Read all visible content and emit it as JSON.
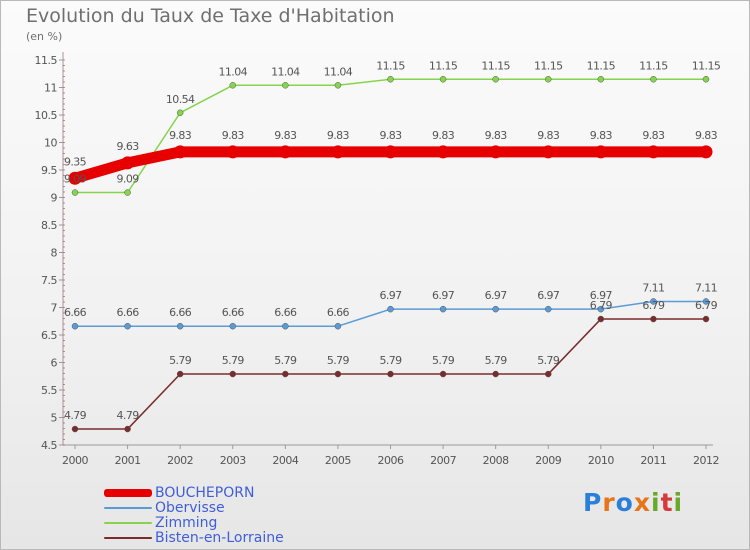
{
  "title": "Evolution du Taux de Taxe d'Habitation",
  "subtitle": "(en %)",
  "logo": {
    "letters": [
      "P",
      "r",
      "o",
      "x",
      "i",
      "t",
      "i"
    ],
    "colors": [
      "#2a7fd8",
      "#e8731a",
      "#2a7fd8",
      "#e8731a",
      "#6aa82a",
      "#d43a3a",
      "#6aa82a"
    ]
  },
  "chart_data": {
    "type": "line",
    "title": "Evolution du Taux de Taxe d'Habitation",
    "ylabel": "(en %)",
    "xlabel": "",
    "x": [
      "2000",
      "2001",
      "2002",
      "2003",
      "2004",
      "2005",
      "2006",
      "2007",
      "2008",
      "2009",
      "2010",
      "2011",
      "2012"
    ],
    "ylim": [
      4.5,
      11.5
    ],
    "yticks": [
      "4.5",
      "5",
      "5.5",
      "6",
      "6.5",
      "7",
      "7.5",
      "8",
      "8.5",
      "9",
      "9.5",
      "10",
      "10.5",
      "11",
      "11.5"
    ],
    "grid": false,
    "legend": "bottom-left",
    "series": [
      {
        "name": "BOUCHEPORN",
        "color": "#e60000",
        "values": [
          9.35,
          9.63,
          9.83,
          9.83,
          9.83,
          9.83,
          9.83,
          9.83,
          9.83,
          9.83,
          9.83,
          9.83,
          9.83
        ],
        "labels": [
          "9.35",
          "9.63",
          "9.83",
          "9.83",
          "9.83",
          "9.83",
          "9.83",
          "9.83",
          "9.83",
          "9.83",
          "9.83",
          "9.83",
          "9.83"
        ]
      },
      {
        "name": "Obervisse",
        "color": "#5b9bd5",
        "values": [
          6.66,
          6.66,
          6.66,
          6.66,
          6.66,
          6.66,
          6.97,
          6.97,
          6.97,
          6.97,
          6.97,
          7.11,
          7.11
        ],
        "labels": [
          "6.66",
          "6.66",
          "6.66",
          "6.66",
          "6.66",
          "6.66",
          "6.97",
          "6.97",
          "6.97",
          "6.97",
          "6.97",
          "7.11",
          "7.11"
        ]
      },
      {
        "name": "Zimming",
        "color": "#86d44c",
        "values": [
          9.09,
          9.09,
          10.54,
          11.04,
          11.04,
          11.04,
          11.15,
          11.15,
          11.15,
          11.15,
          11.15,
          11.15,
          11.15
        ],
        "labels": [
          "9.09",
          "9.09",
          "10.54",
          "11.04",
          "11.04",
          "11.04",
          "11.15",
          "11.15",
          "11.15",
          "11.15",
          "11.15",
          "11.15",
          "11.15"
        ]
      },
      {
        "name": "Bisten-en-Lorraine",
        "color": "#7a2b2b",
        "values": [
          4.79,
          4.79,
          5.79,
          5.79,
          5.79,
          5.79,
          5.79,
          5.79,
          5.79,
          5.79,
          6.79,
          6.79,
          6.79
        ],
        "labels": [
          "4.79",
          "4.79",
          "5.79",
          "5.79",
          "5.79",
          "5.79",
          "5.79",
          "5.79",
          "5.79",
          "5.79",
          "6.79",
          "6.79",
          "6.79"
        ]
      }
    ]
  }
}
